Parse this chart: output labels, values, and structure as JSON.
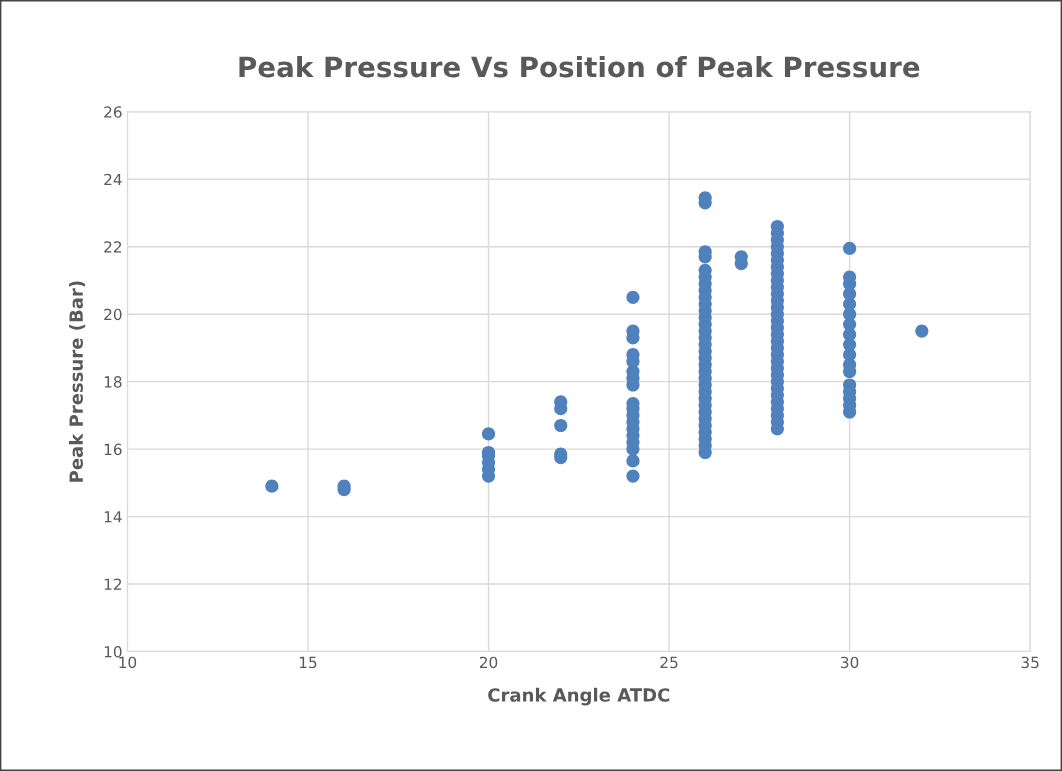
{
  "chart_data": {
    "type": "scatter",
    "title": "Peak Pressure Vs Position of Peak Pressure",
    "xlabel": "Crank Angle ATDC",
    "ylabel": "Peak Pressure (Bar)",
    "xlim": [
      10,
      35
    ],
    "xticks": [
      10,
      15,
      20,
      25,
      30,
      35
    ],
    "ylim": [
      10,
      26
    ],
    "yticks": [
      10,
      12,
      14,
      16,
      18,
      20,
      22,
      24,
      26
    ],
    "grid": true,
    "marker": "circle",
    "series": [
      {
        "color": "#4f81bd",
        "x": [
          14,
          16,
          16,
          20,
          20,
          20,
          20,
          20,
          20,
          22,
          22,
          22,
          22,
          22,
          24,
          24,
          24,
          24,
          24,
          24,
          24,
          24,
          24,
          24,
          24,
          24,
          24,
          24,
          24,
          24,
          24,
          24,
          26,
          26,
          26,
          26,
          26,
          26,
          26,
          26,
          26,
          26,
          26,
          26,
          26,
          26,
          26,
          26,
          26,
          26,
          26,
          26,
          26,
          26,
          26,
          26,
          26,
          26,
          26,
          26,
          26,
          26,
          26,
          26,
          27,
          27,
          28,
          28,
          28,
          28,
          28,
          28,
          28,
          28,
          28,
          28,
          28,
          28,
          28,
          28,
          28,
          28,
          28,
          28,
          28,
          28,
          28,
          28,
          28,
          28,
          28,
          28,
          28,
          28,
          28,
          28,
          28,
          30,
          30,
          30,
          30,
          30,
          30,
          30,
          30,
          30,
          30,
          30,
          30,
          30,
          30,
          30,
          30,
          30,
          32
        ],
        "values": [
          14.9,
          14.8,
          14.9,
          15.2,
          15.4,
          15.6,
          15.8,
          15.9,
          16.45,
          15.75,
          15.85,
          16.7,
          17.2,
          17.4,
          15.2,
          15.65,
          16.0,
          16.2,
          16.4,
          16.6,
          16.8,
          17.0,
          17.2,
          17.35,
          17.9,
          18.1,
          18.3,
          18.6,
          18.8,
          19.3,
          19.5,
          20.5,
          15.9,
          16.1,
          16.3,
          16.5,
          16.7,
          16.9,
          17.1,
          17.3,
          17.5,
          17.7,
          17.9,
          18.1,
          18.3,
          18.5,
          18.7,
          18.9,
          19.1,
          19.3,
          19.5,
          19.7,
          19.9,
          20.1,
          20.3,
          20.5,
          20.7,
          20.9,
          21.1,
          21.3,
          21.7,
          21.85,
          23.3,
          23.45,
          21.5,
          21.7,
          16.6,
          16.8,
          17.0,
          17.2,
          17.4,
          17.6,
          17.8,
          18.0,
          18.2,
          18.4,
          18.6,
          18.8,
          19.0,
          19.2,
          19.4,
          19.6,
          19.8,
          20.0,
          20.2,
          20.4,
          20.6,
          20.8,
          21.0,
          21.2,
          21.4,
          21.6,
          21.8,
          22.0,
          22.2,
          22.4,
          22.6,
          17.1,
          17.3,
          17.5,
          17.7,
          17.9,
          18.3,
          18.5,
          18.8,
          19.1,
          19.4,
          19.7,
          20.0,
          20.3,
          20.6,
          20.9,
          21.1,
          21.95,
          19.5
        ]
      }
    ]
  }
}
